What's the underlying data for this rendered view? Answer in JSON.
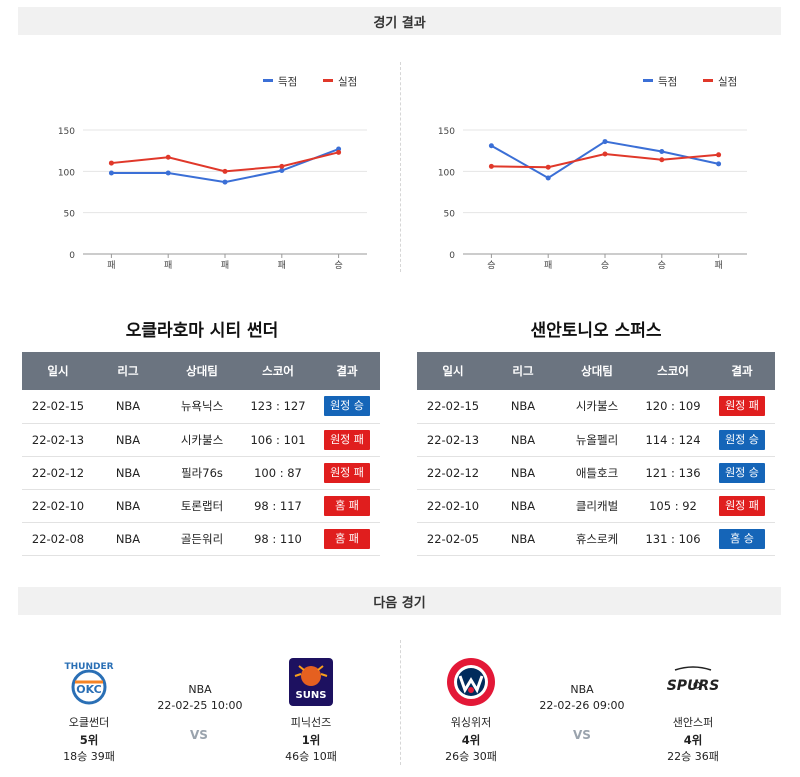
{
  "results_header": "경기 결과",
  "next_header": "다음 경기",
  "legend": {
    "scored": "득점",
    "conceded": "실점"
  },
  "colors": {
    "scored": "#3b6fd6",
    "conceded": "#e0382a",
    "win": "#1565b8",
    "loss": "#e01e1e"
  },
  "chart_data": [
    {
      "type": "line",
      "categories": [
        "패",
        "패",
        "패",
        "패",
        "승"
      ],
      "series": [
        {
          "name": "득점",
          "values": [
            98,
            98,
            87,
            101,
            127
          ]
        },
        {
          "name": "실점",
          "values": [
            110,
            117,
            100,
            106,
            123
          ]
        }
      ],
      "yticks": [
        "150",
        "100",
        "50",
        "0"
      ],
      "ylim": [
        0,
        150
      ],
      "grid": true,
      "legend": "top-right"
    },
    {
      "type": "line",
      "categories": [
        "승",
        "패",
        "승",
        "승",
        "패"
      ],
      "series": [
        {
          "name": "득점",
          "values": [
            131,
            92,
            136,
            124,
            109
          ]
        },
        {
          "name": "실점",
          "values": [
            106,
            105,
            121,
            114,
            120
          ]
        }
      ],
      "yticks": [
        "150",
        "100",
        "50",
        "0"
      ],
      "ylim": [
        0,
        150
      ],
      "grid": true,
      "legend": "top-right"
    }
  ],
  "table_headers": [
    "일시",
    "리그",
    "상대팀",
    "스코어",
    "결과"
  ],
  "teams": [
    {
      "name": "오클라호마 시티 썬더",
      "games": [
        {
          "date": "22-02-15",
          "league": "NBA",
          "opponent": "뉴욕닉스",
          "score": "123 : 127",
          "result": "원정 승",
          "color": "blue"
        },
        {
          "date": "22-02-13",
          "league": "NBA",
          "opponent": "시카불스",
          "score": "106 : 101",
          "result": "원정 패",
          "color": "red"
        },
        {
          "date": "22-02-12",
          "league": "NBA",
          "opponent": "필라76s",
          "score": "100 : 87",
          "result": "원정 패",
          "color": "red"
        },
        {
          "date": "22-02-10",
          "league": "NBA",
          "opponent": "토론랩터",
          "score": "98 : 117",
          "result": "홈 패",
          "color": "red"
        },
        {
          "date": "22-02-08",
          "league": "NBA",
          "opponent": "골든워리",
          "score": "98 : 110",
          "result": "홈 패",
          "color": "red"
        }
      ]
    },
    {
      "name": "샌안토니오 스퍼스",
      "games": [
        {
          "date": "22-02-15",
          "league": "NBA",
          "opponent": "시카불스",
          "score": "120 : 109",
          "result": "원정 패",
          "color": "red"
        },
        {
          "date": "22-02-13",
          "league": "NBA",
          "opponent": "뉴올펠리",
          "score": "114 : 124",
          "result": "원정 승",
          "color": "blue"
        },
        {
          "date": "22-02-12",
          "league": "NBA",
          "opponent": "애틀호크",
          "score": "121 : 136",
          "result": "원정 승",
          "color": "blue"
        },
        {
          "date": "22-02-10",
          "league": "NBA",
          "opponent": "클리캐벌",
          "score": "105 : 92",
          "result": "원정 패",
          "color": "red"
        },
        {
          "date": "22-02-05",
          "league": "NBA",
          "opponent": "휴스로케",
          "score": "131 : 106",
          "result": "홈 승",
          "color": "blue"
        }
      ]
    }
  ],
  "next_games": [
    {
      "home": {
        "name": "오클썬더",
        "rank": "5위",
        "record": "18승 39패",
        "logo": "thunder-logo"
      },
      "league": "NBA",
      "datetime": "22-02-25 10:00",
      "vs": "VS",
      "away": {
        "name": "피닉선즈",
        "rank": "1위",
        "record": "46승 10패",
        "logo": "suns-logo"
      }
    },
    {
      "home": {
        "name": "워싱위저",
        "rank": "4위",
        "record": "26승 30패",
        "logo": "wizards-logo"
      },
      "league": "NBA",
      "datetime": "22-02-26 09:00",
      "vs": "VS",
      "away": {
        "name": "샌안스퍼",
        "rank": "4위",
        "record": "22승 36패",
        "logo": "spurs-logo"
      }
    }
  ]
}
